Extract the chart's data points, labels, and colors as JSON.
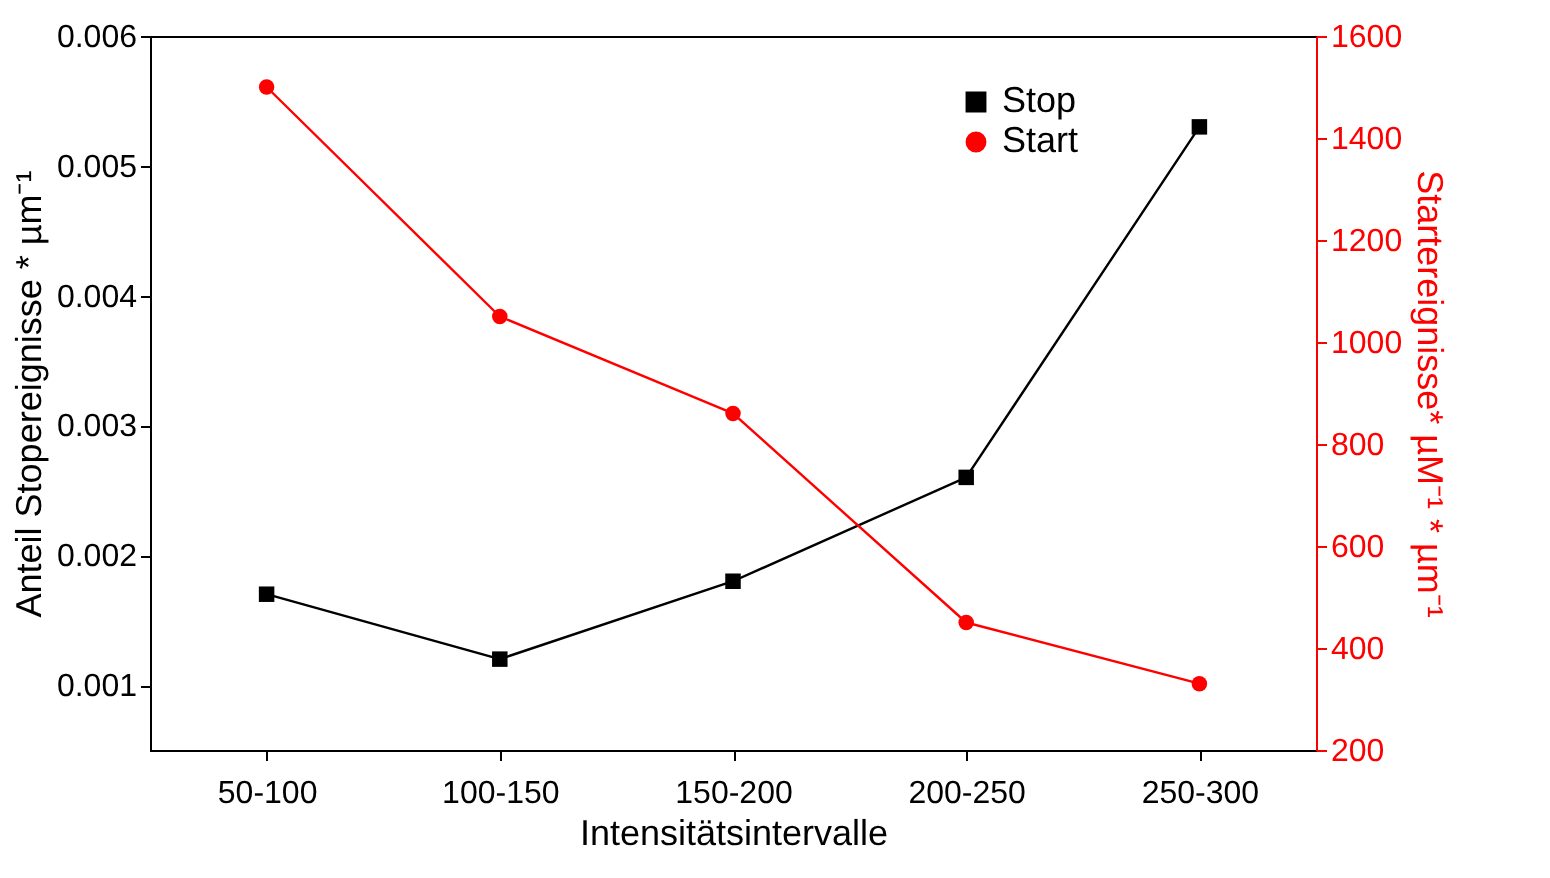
{
  "chart_data": {
    "type": "line",
    "xlabel": "Intensitätsintervalle",
    "ylabel": "Anteil Stopereignisse * µm⁻¹",
    "y2label": "Startereignisse* µM⁻¹ * µm⁻¹",
    "categories": [
      "50-100",
      "100-150",
      "150-200",
      "200-250",
      "250-300"
    ],
    "series": [
      {
        "name": "Stop",
        "color": "#000000",
        "marker": "square",
        "values": [
          0.0017,
          0.0012,
          0.0018,
          0.0026,
          0.0053
        ]
      },
      {
        "name": "Start",
        "color": "#ff0000",
        "marker": "circle",
        "axis": "y2",
        "values": [
          1500,
          1050,
          860,
          450,
          330
        ]
      }
    ],
    "ylim": [
      0.0005,
      0.006
    ],
    "yticks": [
      0.001,
      0.002,
      0.003,
      0.004,
      0.005,
      0.006
    ],
    "y2lim": [
      200,
      1600
    ],
    "y2ticks": [
      200,
      400,
      600,
      800,
      1000,
      1200,
      1400,
      1600
    ],
    "grid": false,
    "legend": "top right"
  }
}
